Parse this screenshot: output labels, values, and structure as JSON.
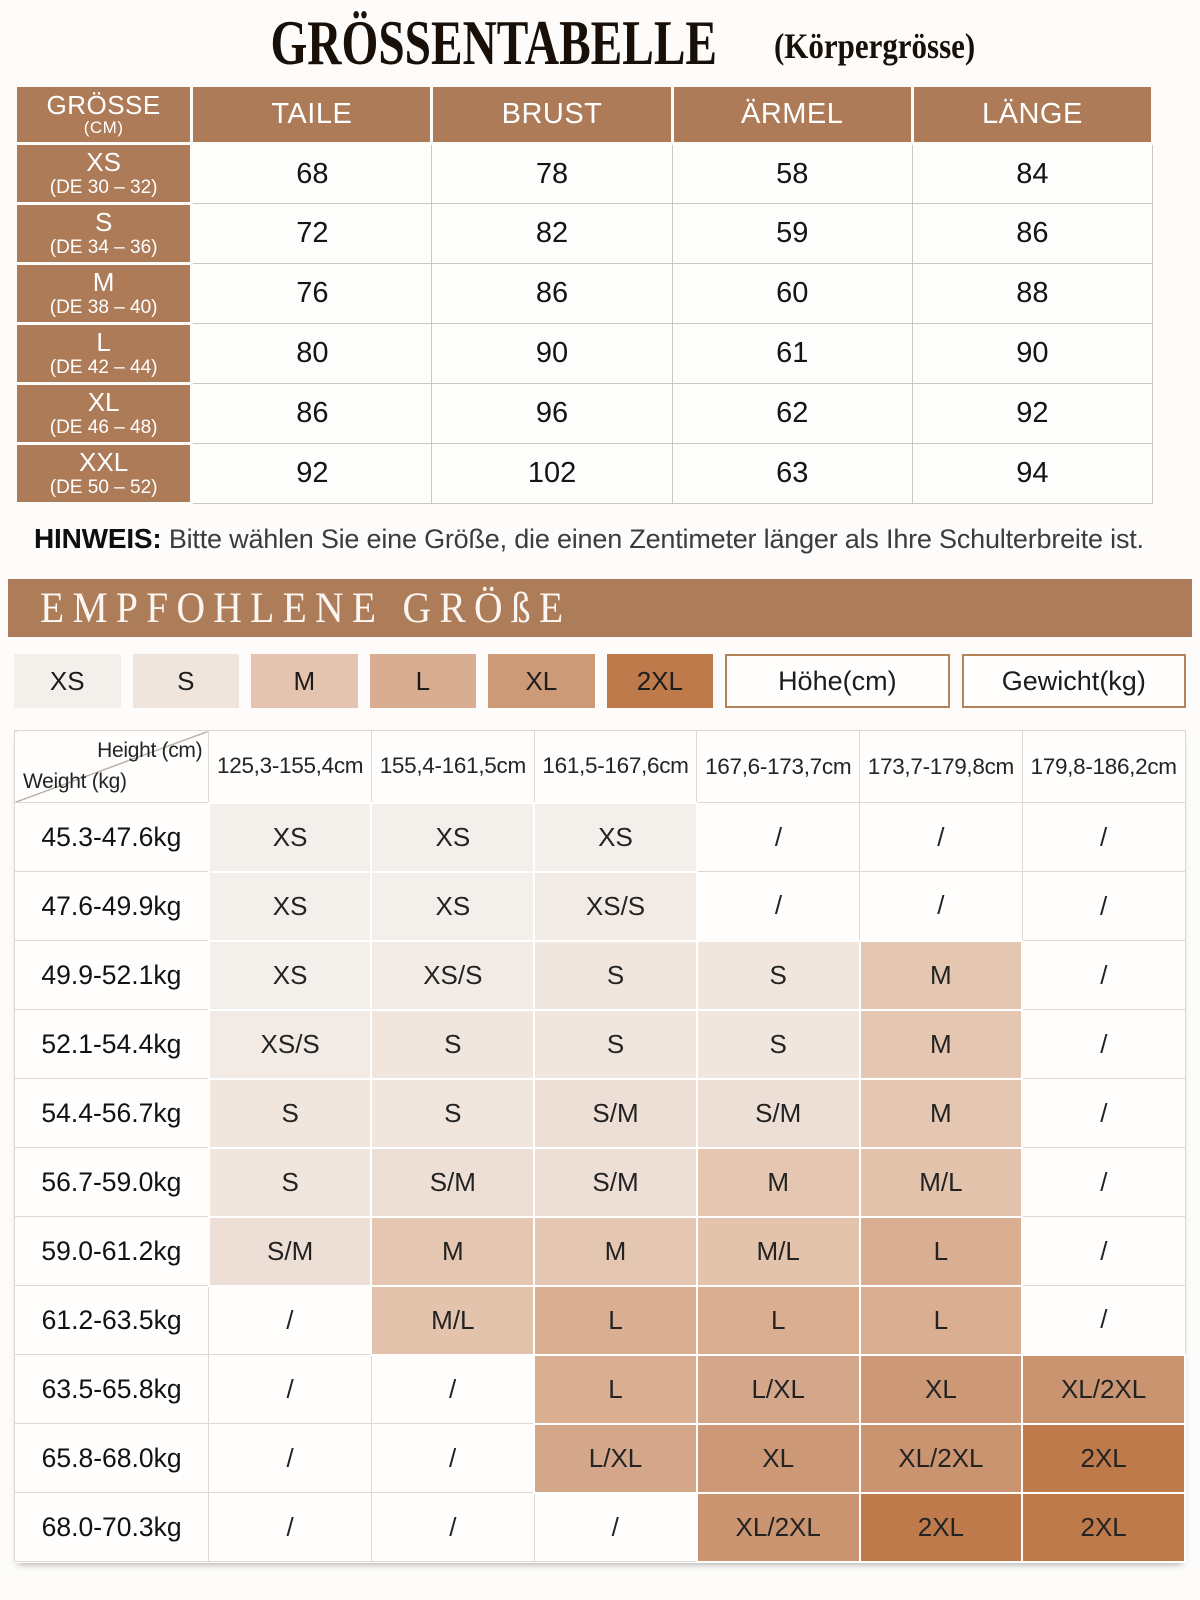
{
  "title": {
    "main": "GRÖSSENTABELLE",
    "sub": "(Körpergrösse)"
  },
  "colors": {
    "brown": "#ad7b58",
    "banner_brown": "#ad7c58",
    "page_bg": "#fdfcfa"
  },
  "size_table": {
    "header": {
      "col0_title": "GRÖSSE",
      "col0_unit": "(CM)",
      "cols": [
        "TAILE",
        "BRUST",
        "ÄRMEL",
        "LÄNGE"
      ]
    },
    "rows": [
      {
        "size": "XS",
        "de": "(DE 30 – 32)",
        "values": [
          "68",
          "78",
          "58",
          "84"
        ]
      },
      {
        "size": "S",
        "de": "(DE 34 – 36)",
        "values": [
          "72",
          "82",
          "59",
          "86"
        ]
      },
      {
        "size": "M",
        "de": "(DE 38 – 40)",
        "values": [
          "76",
          "86",
          "60",
          "88"
        ]
      },
      {
        "size": "L",
        "de": "(DE 42 – 44)",
        "values": [
          "80",
          "90",
          "61",
          "90"
        ]
      },
      {
        "size": "XL",
        "de": "(DE 46 – 48)",
        "values": [
          "86",
          "96",
          "62",
          "92"
        ]
      },
      {
        "size": "XXL",
        "de": "(DE 50 – 52)",
        "values": [
          "92",
          "102",
          "63",
          "94"
        ]
      }
    ]
  },
  "hinweis": {
    "label": "HINWEIS:",
    "text": "Bitte wählen Sie eine Größe, die einen Zentimeter länger als Ihre Schulterbreite ist."
  },
  "recommended": {
    "banner": "EMPFOHLENE GRÖßE"
  },
  "legend": {
    "sizes": [
      {
        "label": "XS",
        "color": "#f3efeb"
      },
      {
        "label": "S",
        "color": "#f0e5dd"
      },
      {
        "label": "M",
        "color": "#e4c4ae"
      },
      {
        "label": "L",
        "color": "#d8ad91"
      },
      {
        "label": "XL",
        "color": "#cd9a77"
      },
      {
        "label": "2XL",
        "color": "#bf7a4b"
      }
    ],
    "boxes": [
      "Höhe(cm)",
      "Gewicht(kg)"
    ]
  },
  "matrix": {
    "corner": {
      "top": "Height (cm)",
      "bottom": "Weight (kg)"
    },
    "height_cols": [
      "125,3-155,4cm",
      "155,4-161,5cm",
      "161,5-167,6cm",
      "167,6-173,7cm",
      "173,7-179,8cm",
      "179,8-186,2cm"
    ],
    "rows": [
      {
        "weight": "45.3-47.6kg",
        "cells": [
          "XS",
          "XS",
          "XS",
          "/",
          "/",
          "/"
        ]
      },
      {
        "weight": "47.6-49.9kg",
        "cells": [
          "XS",
          "XS",
          "XS/S",
          "/",
          "/",
          "/"
        ]
      },
      {
        "weight": "49.9-52.1kg",
        "cells": [
          "XS",
          "XS/S",
          "S",
          "S",
          "M",
          "/"
        ]
      },
      {
        "weight": "52.1-54.4kg",
        "cells": [
          "XS/S",
          "S",
          "S",
          "S",
          "M",
          "/"
        ]
      },
      {
        "weight": "54.4-56.7kg",
        "cells": [
          "S",
          "S",
          "S/M",
          "S/M",
          "M",
          "/"
        ]
      },
      {
        "weight": "56.7-59.0kg",
        "cells": [
          "S",
          "S/M",
          "S/M",
          "M",
          "M/L",
          "/"
        ]
      },
      {
        "weight": "59.0-61.2kg",
        "cells": [
          "S/M",
          "M",
          "M",
          "M/L",
          "L",
          "/"
        ]
      },
      {
        "weight": "61.2-63.5kg",
        "cells": [
          "/",
          "M/L",
          "L",
          "L",
          "L",
          "/"
        ]
      },
      {
        "weight": "63.5-65.8kg",
        "cells": [
          "/",
          "/",
          "L",
          "L/XL",
          "XL",
          "XL/2XL"
        ]
      },
      {
        "weight": "65.8-68.0kg",
        "cells": [
          "/",
          "/",
          "L/XL",
          "XL",
          "XL/2XL",
          "2XL"
        ]
      },
      {
        "weight": "68.0-70.3kg",
        "cells": [
          "/",
          "/",
          "/",
          "XL/2XL",
          "2XL",
          "2XL"
        ]
      }
    ],
    "cell_colors": {
      "XS": "#f3efea",
      "XS/S": "#f2ebe5",
      "S": "#f1e6de",
      "S/M": "#eddfd5",
      "M": "#e5c7b1",
      "M/L": "#e3c3ac",
      "L": "#d9ae91",
      "L/XL": "#d5a78a",
      "XL": "#cc9875",
      "XL/2XL": "#ca9470",
      "2XL": "#bf7a4b",
      "/": "#fffefd"
    }
  }
}
